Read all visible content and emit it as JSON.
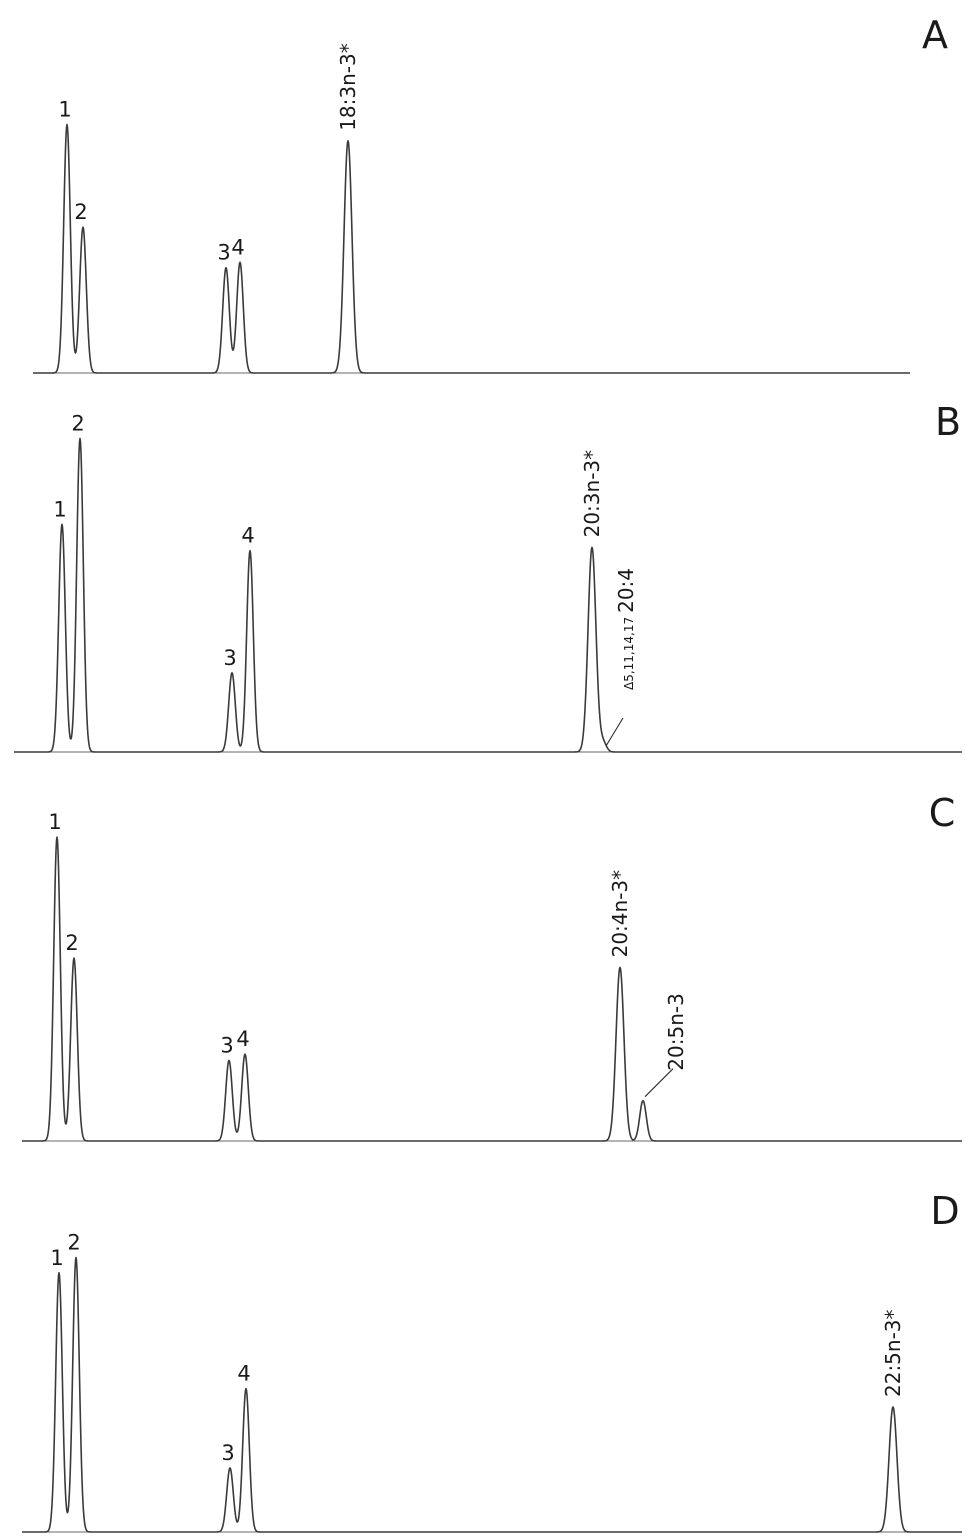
{
  "chart_data": [
    {
      "type": "line",
      "panel": "A",
      "peaks": [
        {
          "label": "1",
          "rt": 67,
          "height": 0.92
        },
        {
          "label": "2",
          "rt": 83,
          "height": 0.54
        },
        {
          "label": "3",
          "rt": 226,
          "height": 0.39
        },
        {
          "label": "4",
          "rt": 240,
          "height": 0.41
        },
        {
          "label": "18:3n-3*",
          "rt": 348,
          "height": 0.86
        }
      ]
    },
    {
      "type": "line",
      "panel": "B",
      "peaks": [
        {
          "label": "1",
          "rt": 62,
          "height": 0.69
        },
        {
          "label": "2",
          "rt": 80,
          "height": 0.95
        },
        {
          "label": "3",
          "rt": 232,
          "height": 0.24
        },
        {
          "label": "4",
          "rt": 250,
          "height": 0.61
        },
        {
          "label": "20:3n-3*",
          "rt": 592,
          "height": 0.62
        },
        {
          "label": "20:4",
          "sub": "Δ5,11,14,17",
          "rt": 603,
          "height": 0.03
        }
      ]
    },
    {
      "type": "line",
      "panel": "C",
      "peaks": [
        {
          "label": "1",
          "rt": 57,
          "height": 0.98
        },
        {
          "label": "2",
          "rt": 74,
          "height": 0.59
        },
        {
          "label": "3",
          "rt": 229,
          "height": 0.26
        },
        {
          "label": "4",
          "rt": 245,
          "height": 0.28
        },
        {
          "label": "20:4n-3*",
          "rt": 620,
          "height": 0.56
        },
        {
          "label": "20:5n-3",
          "rt": 643,
          "height": 0.13
        }
      ]
    },
    {
      "type": "line",
      "panel": "D",
      "peaks": [
        {
          "label": "1",
          "rt": 59,
          "height": 0.85
        },
        {
          "label": "2",
          "rt": 76,
          "height": 0.9
        },
        {
          "label": "3",
          "rt": 230,
          "height": 0.21
        },
        {
          "label": "4",
          "rt": 246,
          "height": 0.47
        },
        {
          "label": "22:5n-3*",
          "rt": 893,
          "height": 0.41
        }
      ]
    }
  ]
}
